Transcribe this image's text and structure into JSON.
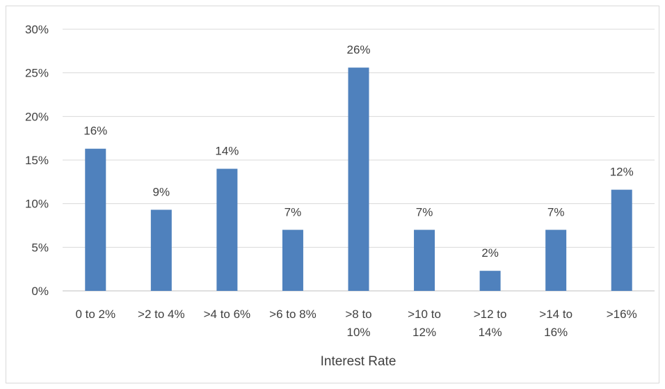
{
  "chart_data": {
    "type": "bar",
    "title": "",
    "xlabel": "Interest Rate",
    "ylabel": "",
    "ylim": [
      0,
      30
    ],
    "yticks": [
      "0%",
      "5%",
      "10%",
      "15%",
      "20%",
      "25%",
      "30%"
    ],
    "ytick_values": [
      0,
      5,
      10,
      15,
      20,
      25,
      30
    ],
    "grid": true,
    "legend": "none",
    "bar_color": "#4f81bd",
    "categories": [
      [
        "0 to 2%"
      ],
      [
        ">2 to 4%"
      ],
      [
        ">4 to 6%"
      ],
      [
        ">6 to 8%"
      ],
      [
        ">8 to",
        "10%"
      ],
      [
        ">10 to",
        "12%"
      ],
      [
        ">12 to",
        "14%"
      ],
      [
        ">14 to",
        "16%"
      ],
      [
        ">16%"
      ]
    ],
    "values": [
      16.3,
      9.3,
      14.0,
      7.0,
      25.6,
      7.0,
      2.3,
      7.0,
      11.6
    ],
    "data_labels": [
      "16%",
      "9%",
      "14%",
      "7%",
      "26%",
      "7%",
      "2%",
      "7%",
      "12%"
    ]
  }
}
